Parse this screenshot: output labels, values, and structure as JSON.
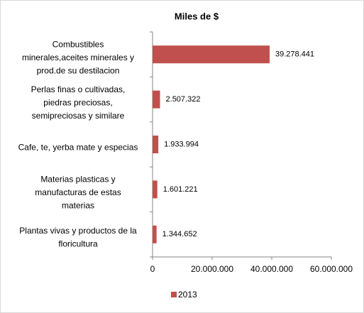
{
  "chart_data": {
    "type": "bar",
    "orientation": "horizontal",
    "title": "Miles de $",
    "categories": [
      [
        "Combustibles",
        "minerales,aceites minerales y",
        "prod.de su destilacion"
      ],
      [
        "Perlas finas o cultivadas,",
        "piedras preciosas,",
        "semipreciosas y similare"
      ],
      [
        "Cafe, te, yerba mate y especias"
      ],
      [
        "Materias plasticas y",
        "manufacturas de estas",
        "materias"
      ],
      [
        "Plantas vivas y productos de la",
        "floricultura"
      ]
    ],
    "series": [
      {
        "name": "2013",
        "color": "#c0504d",
        "values": [
          39278441,
          2507322,
          1933994,
          1601221,
          1344652
        ],
        "value_labels": [
          "39.278.441",
          "2.507.322",
          "1.933.994",
          "1.601.221",
          "1.344.652"
        ]
      }
    ],
    "xlim": [
      0,
      60000000
    ],
    "xticks": [
      0,
      {
        "value": 20000000,
        "label": "20.000.000"
      },
      {
        "value": 40000000,
        "label": "40.000.000"
      },
      {
        "value": 60000000,
        "label": "60.000.000"
      }
    ],
    "legend": "bottom"
  }
}
